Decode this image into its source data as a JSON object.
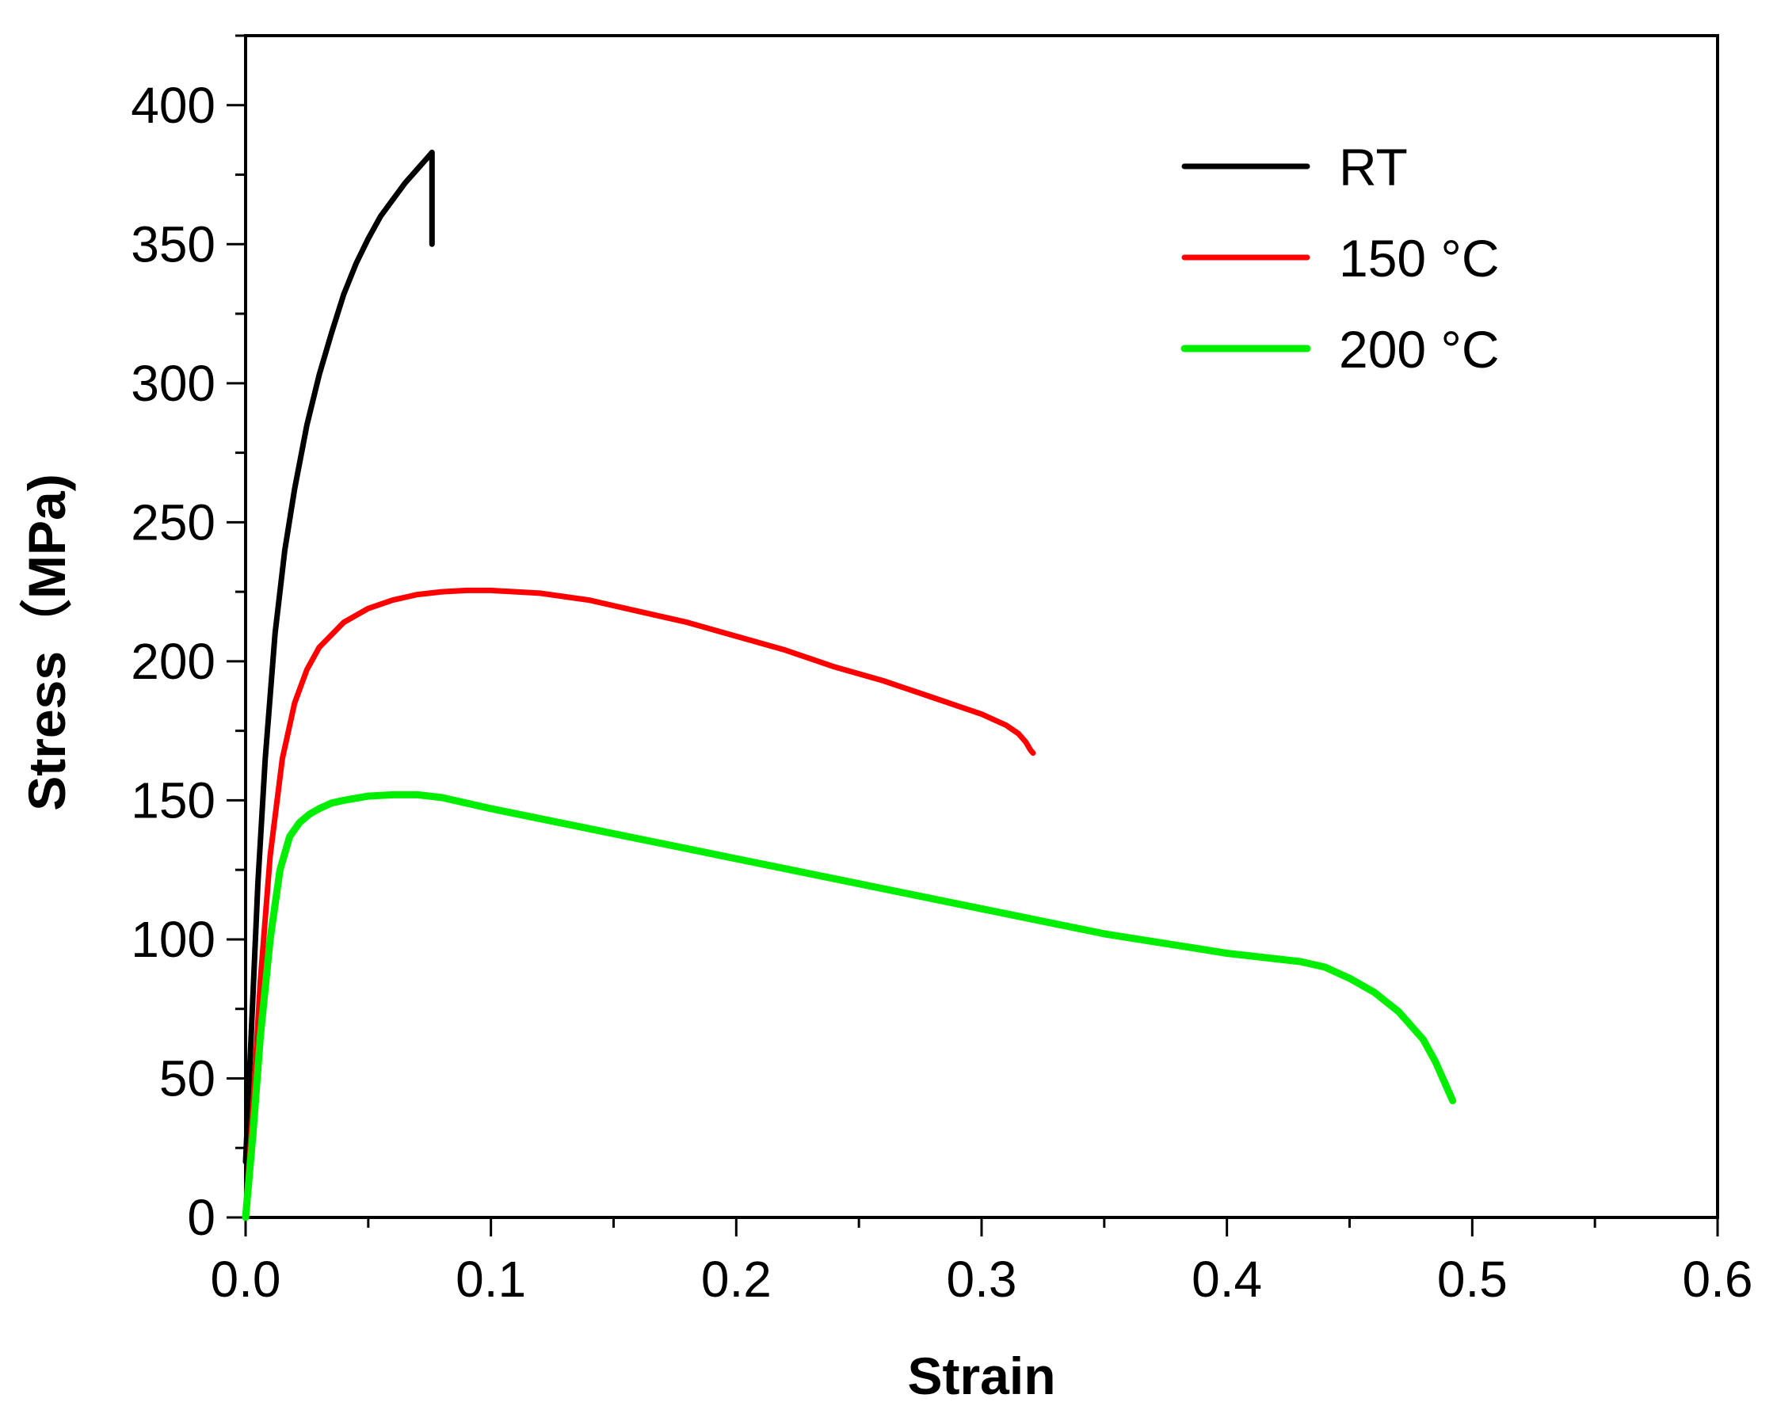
{
  "chart_data": {
    "type": "line",
    "title": "",
    "xlabel": "Strain",
    "ylabel": "Stress（MPa)",
    "xlim": [
      0.0,
      0.6
    ],
    "ylim": [
      0,
      425
    ],
    "x_ticks": [
      "0.0",
      "0.1",
      "0.2",
      "0.3",
      "0.4",
      "0.5",
      "0.6"
    ],
    "x_tick_values": [
      0.0,
      0.1,
      0.2,
      0.3,
      0.4,
      0.5,
      0.6
    ],
    "y_ticks": [
      "0",
      "50",
      "100",
      "150",
      "200",
      "250",
      "300",
      "350",
      "400"
    ],
    "y_tick_values": [
      0,
      50,
      100,
      150,
      200,
      250,
      300,
      350,
      400
    ],
    "x_minor_step": 0.05,
    "y_minor_step": 25,
    "legend_position": "top-right",
    "grid": false,
    "series": [
      {
        "name": "RT",
        "color": "#000000",
        "x": [
          0.0,
          0.002,
          0.005,
          0.008,
          0.012,
          0.016,
          0.02,
          0.025,
          0.03,
          0.035,
          0.04,
          0.045,
          0.05,
          0.055,
          0.06,
          0.065,
          0.07,
          0.075,
          0.076,
          0.076
        ],
        "y": [
          20,
          60,
          120,
          165,
          210,
          240,
          262,
          285,
          303,
          318,
          332,
          343,
          352,
          360,
          366,
          372,
          377,
          382,
          383,
          350
        ]
      },
      {
        "name": "150 °C",
        "color": "#ff0000",
        "x": [
          0.0,
          0.003,
          0.006,
          0.01,
          0.015,
          0.02,
          0.025,
          0.03,
          0.04,
          0.05,
          0.06,
          0.07,
          0.08,
          0.09,
          0.1,
          0.12,
          0.14,
          0.16,
          0.18,
          0.2,
          0.22,
          0.24,
          0.26,
          0.28,
          0.3,
          0.31,
          0.315,
          0.318,
          0.32,
          0.321
        ],
        "y": [
          0,
          40,
          85,
          130,
          165,
          185,
          197,
          205,
          214,
          219,
          222,
          224,
          225,
          225.5,
          225.5,
          224.5,
          222,
          218,
          214,
          209,
          204,
          198,
          193,
          187,
          181,
          177,
          174,
          171,
          168,
          167
        ]
      },
      {
        "name": "200 °C",
        "color": "#00ee00",
        "x": [
          0.0,
          0.003,
          0.006,
          0.01,
          0.014,
          0.018,
          0.022,
          0.026,
          0.03,
          0.035,
          0.04,
          0.05,
          0.06,
          0.07,
          0.08,
          0.1,
          0.15,
          0.2,
          0.25,
          0.3,
          0.35,
          0.4,
          0.43,
          0.44,
          0.45,
          0.46,
          0.47,
          0.48,
          0.485,
          0.49,
          0.492
        ],
        "y": [
          0,
          30,
          65,
          100,
          125,
          137,
          142,
          145,
          147,
          149,
          150,
          151.5,
          152,
          152,
          151,
          147,
          138,
          129,
          120,
          111,
          102,
          95,
          92,
          90,
          86,
          81,
          74,
          64,
          56,
          46,
          42
        ]
      }
    ]
  }
}
